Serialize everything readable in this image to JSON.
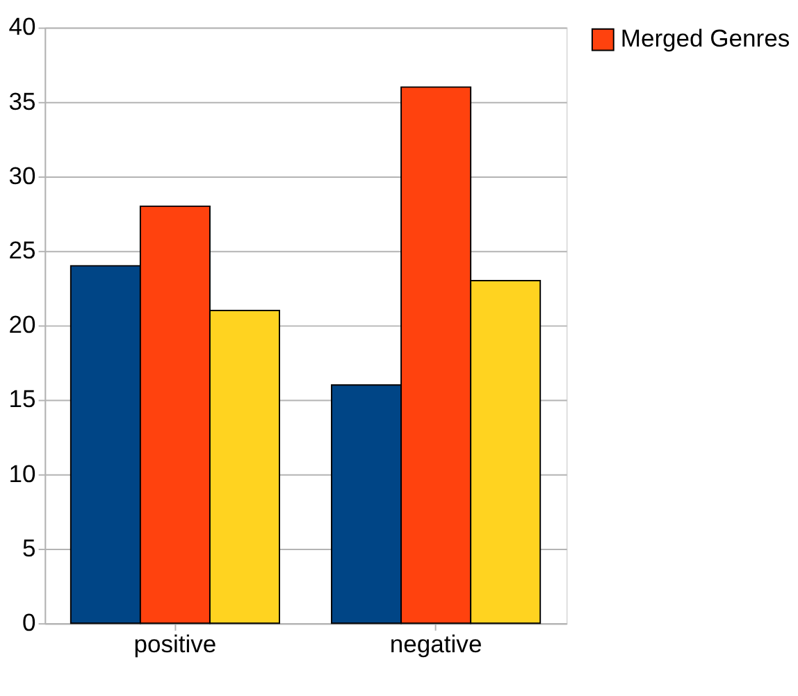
{
  "chart_data": {
    "type": "bar",
    "categories": [
      "positive",
      "negative"
    ],
    "series": [
      {
        "color": "#004586",
        "values": [
          24,
          16
        ]
      },
      {
        "name": "Merged Genres",
        "color": "#ff420e",
        "values": [
          28,
          36
        ]
      },
      {
        "color": "#ffd320",
        "values": [
          21,
          23
        ]
      }
    ],
    "ylim": [
      0,
      40
    ],
    "yticks": [
      0,
      5,
      10,
      15,
      20,
      25,
      30,
      35,
      40
    ],
    "grid": "y",
    "legend": "right"
  }
}
